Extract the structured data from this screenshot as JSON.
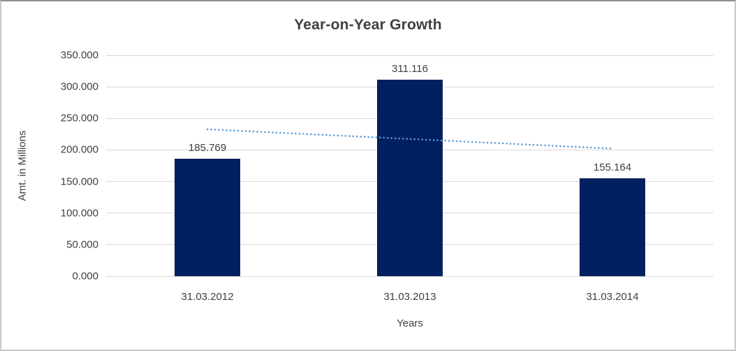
{
  "chart_data": {
    "type": "bar",
    "title": "Year-on-Year Growth",
    "xlabel": "Years",
    "ylabel": "Amt. in Millions",
    "categories": [
      "31.03.2012",
      "31.03.2013",
      "31.03.2014"
    ],
    "values": [
      185.769,
      311.116,
      155.164
    ],
    "data_labels": [
      "185.769",
      "311.116",
      "155.164"
    ],
    "y_ticks": [
      "350.000",
      "300.000",
      "250.000",
      "200.000",
      "150.000",
      "100.000",
      "50.000",
      "0.000"
    ],
    "ylim": [
      0,
      350
    ],
    "y_tick_step": 50,
    "grid": true,
    "legend": "none",
    "trendline": {
      "type": "linear",
      "style": "dotted",
      "fitted_values": [
        232.65,
        217.35,
        202.05
      ],
      "color": "#5b9bd5"
    },
    "colors": {
      "bar": "#002060",
      "gridline": "#d9d9d9",
      "text": "#404040",
      "trendline": "#5b9bd5",
      "frame_border": "#c9c9c9",
      "background": "#ffffff"
    }
  }
}
